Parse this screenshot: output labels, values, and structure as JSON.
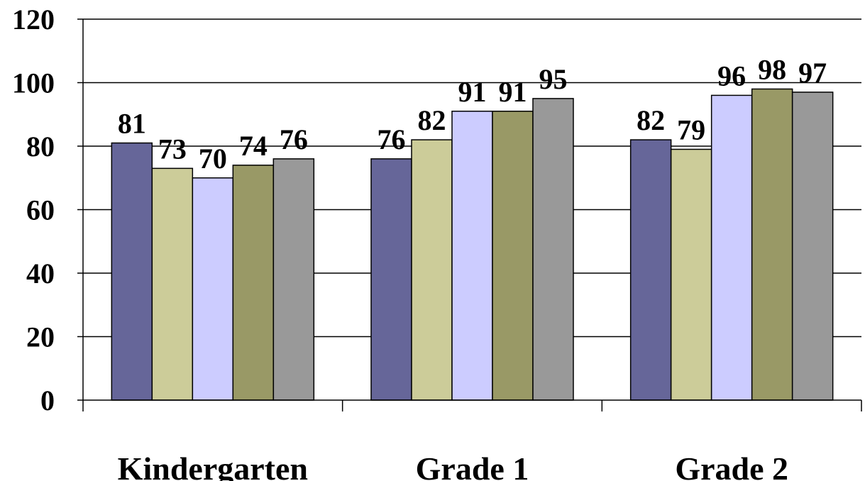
{
  "chart_data": {
    "type": "bar",
    "title": "",
    "xlabel": "",
    "ylabel": "",
    "categories": [
      "Kindergarten",
      "Grade 1",
      "Grade 2"
    ],
    "series": [
      {
        "values": [
          81,
          76,
          82
        ],
        "color": "#666699"
      },
      {
        "values": [
          73,
          82,
          79
        ],
        "color": "#CCCC99"
      },
      {
        "values": [
          70,
          91,
          96
        ],
        "color": "#CCCCFF"
      },
      {
        "values": [
          74,
          91,
          98
        ],
        "color": "#999966"
      },
      {
        "values": [
          76,
          95,
          97
        ],
        "color": "#999999"
      }
    ],
    "ylim": [
      0,
      120
    ],
    "yticks": [
      0,
      20,
      40,
      60,
      80,
      100,
      120
    ],
    "grid": true,
    "legend": "none",
    "data_labels": true
  }
}
